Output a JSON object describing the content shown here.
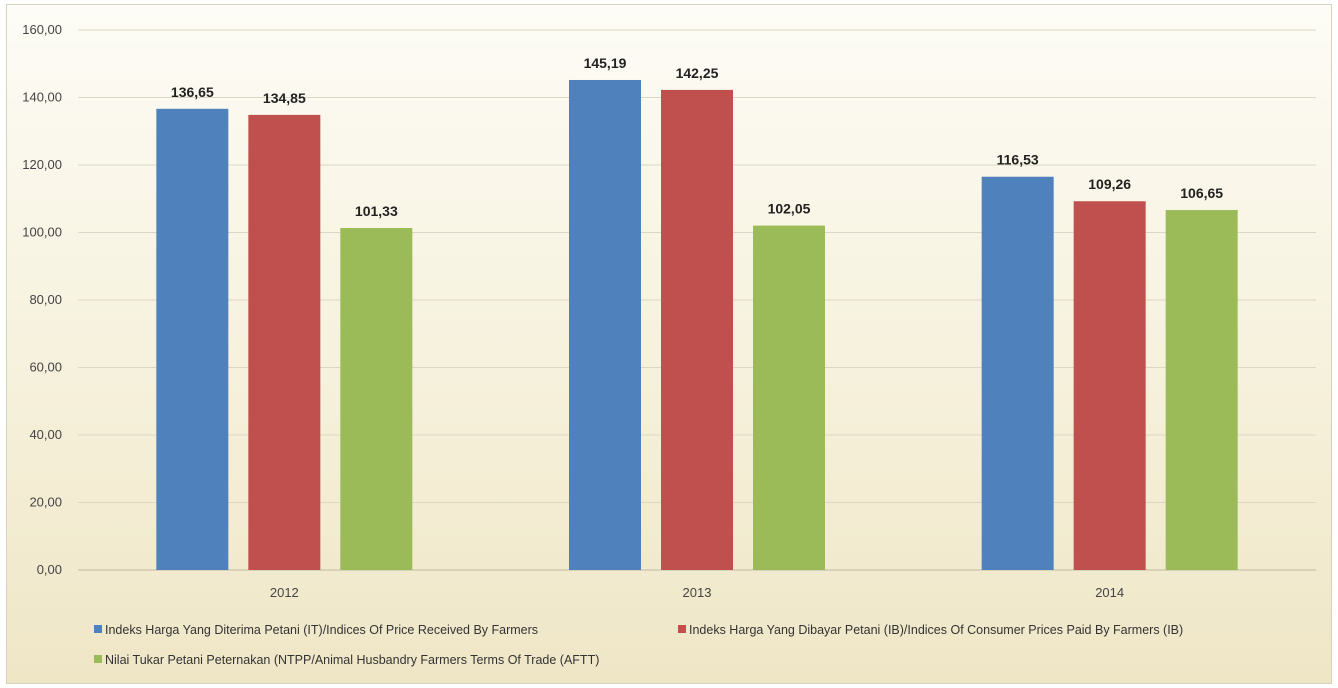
{
  "chart_data": {
    "type": "bar",
    "categories": [
      "2012",
      "2013",
      "2014"
    ],
    "series": [
      {
        "name": "Indeks Harga Yang Diterima Petani (IT)/Indices Of Price Received By  Farmers",
        "color": "#4f81bd",
        "values": [
          136.65,
          145.19,
          116.53
        ],
        "labels": [
          "136,65",
          "145,19",
          "116,53"
        ]
      },
      {
        "name": "Indeks Harga Yang Dibayar Petani (IB)/Indices Of Consumer Prices Paid By Farmers (IB)",
        "color": "#c0504d",
        "values": [
          134.85,
          142.25,
          109.26
        ],
        "labels": [
          "134,85",
          "142,25",
          "109,26"
        ]
      },
      {
        "name": "Nilai Tukar Petani Peternakan (NTPP/Animal Husbandry Farmers Terms Of Trade (AFTT)",
        "color": "#9bbb59",
        "values": [
          101.33,
          102.05,
          106.65
        ],
        "labels": [
          "101,33",
          "102,05",
          "106,65"
        ]
      }
    ],
    "ylim": [
      0,
      160
    ],
    "yticks": [
      "0,00",
      "20,00",
      "40,00",
      "60,00",
      "80,00",
      "100,00",
      "120,00",
      "140,00",
      "160,00"
    ],
    "grid": true,
    "legend_position": "bottom",
    "title": "",
    "xlabel": "",
    "ylabel": ""
  }
}
